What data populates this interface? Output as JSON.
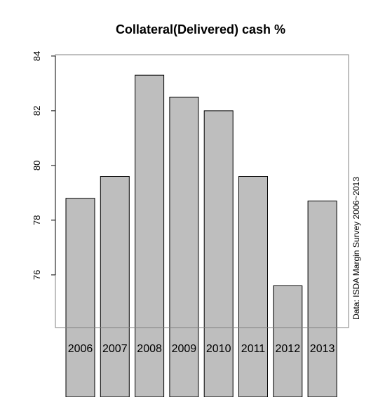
{
  "chart_data": {
    "type": "bar",
    "title": "Collateral(Delivered) cash %",
    "categories": [
      "2006",
      "2007",
      "2008",
      "2009",
      "2010",
      "2011",
      "2012",
      "2013"
    ],
    "values": [
      78.8,
      79.6,
      83.3,
      82.5,
      82.0,
      79.6,
      75.6,
      78.7
    ],
    "ylim": [
      75,
      85
    ],
    "yticks": [
      "76",
      "78",
      "80",
      "82",
      "84"
    ],
    "bar_color": "#bebebe",
    "grid": false,
    "source_note": "Data: ISDA Margin Survey 2006~2013"
  }
}
